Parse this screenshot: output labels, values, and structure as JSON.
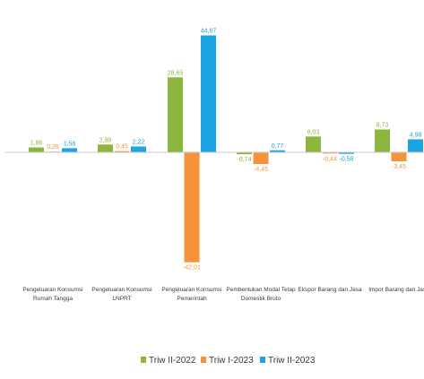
{
  "chart_data": {
    "type": "bar",
    "categories": [
      [
        "Pengeluaran Konsumsi",
        "Rumah Tangga"
      ],
      [
        "Pengeluaran Konsumsi",
        "LNPRT"
      ],
      [
        "Pengeluaran Konsumsi",
        "Pemerintah"
      ],
      [
        "Pembentukan Modal Tetap",
        "Domestik Bruto"
      ],
      [
        "Ekspor Barang dan Jasa"
      ],
      [
        "Impor Barang dan Jasa"
      ]
    ],
    "series": [
      {
        "name": "Triw II-2022",
        "color": "#8db63e",
        "values": [
          1.86,
          2.98,
          28.65,
          -0.74,
          6.03,
          8.73
        ],
        "labels": [
          "1,86",
          "2,98",
          "28,65",
          "-0,74",
          "6,03",
          "8,73"
        ]
      },
      {
        "name": "Triw I-2023",
        "color": "#f7923a",
        "values": [
          0.26,
          0.45,
          -42.01,
          -4.45,
          -0.44,
          -3.45
        ],
        "labels": [
          "0,26",
          "0,45",
          "-42,01",
          "-4,45",
          "-0,44",
          "-3,45"
        ]
      },
      {
        "name": "Triw II-2023",
        "color": "#1ca3e4",
        "values": [
          1.58,
          2.22,
          44.67,
          0.77,
          -0.58,
          4.98
        ],
        "labels": [
          "1,58",
          "2,22",
          "44,67",
          "0,77",
          "-0,58",
          "4,98"
        ]
      }
    ],
    "ylim": [
      -45,
      47
    ],
    "grid": false,
    "legend_position": "bottom-center"
  }
}
